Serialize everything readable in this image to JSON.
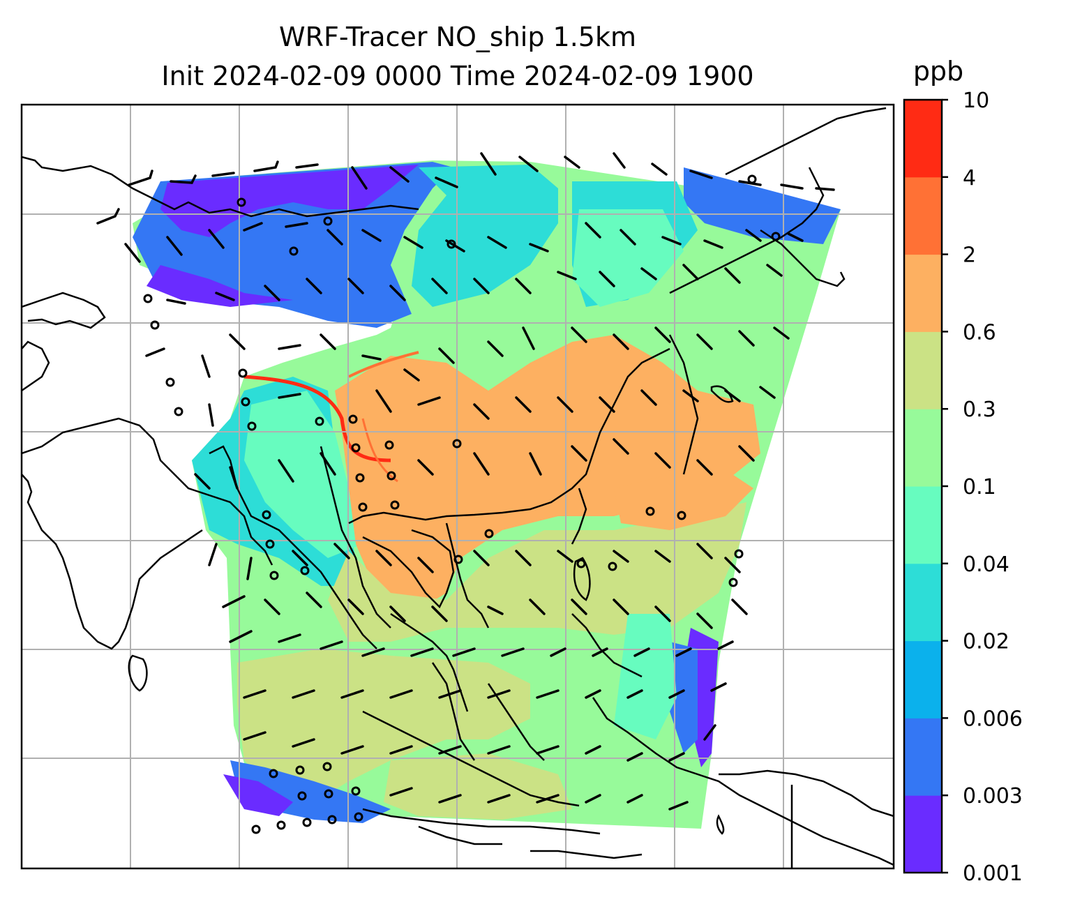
{
  "title": {
    "line1": "WRF-Tracer NO_ship 1.5km",
    "line2": "Init 2024-02-09 0000 Time 2024-02-09 1900"
  },
  "colorbar": {
    "unit": "ppb",
    "levels": [
      "0.001",
      "0.003",
      "0.006",
      "0.02",
      "0.04",
      "0.1",
      "0.3",
      "0.6",
      "2",
      "4",
      "10"
    ],
    "colors": [
      "#6a2cff",
      "#3477f4",
      "#0bb1ec",
      "#2dddd7",
      "#67fcbf",
      "#97fa9a",
      "#cbe285",
      "#fdb061",
      "#ff7135",
      "#ff2b14"
    ]
  },
  "map": {
    "field_colors": {
      "very_low": "#6a2cff",
      "low": "#3477f4",
      "cyan": "#2dddd7",
      "aqua": "#67fcbf",
      "green": "#97fa9a",
      "olive": "#cbe285",
      "orange": "#fdb061",
      "red": "#ff2b14"
    },
    "gridline_color": "#b0b0b0",
    "coastline_color": "#000000"
  }
}
